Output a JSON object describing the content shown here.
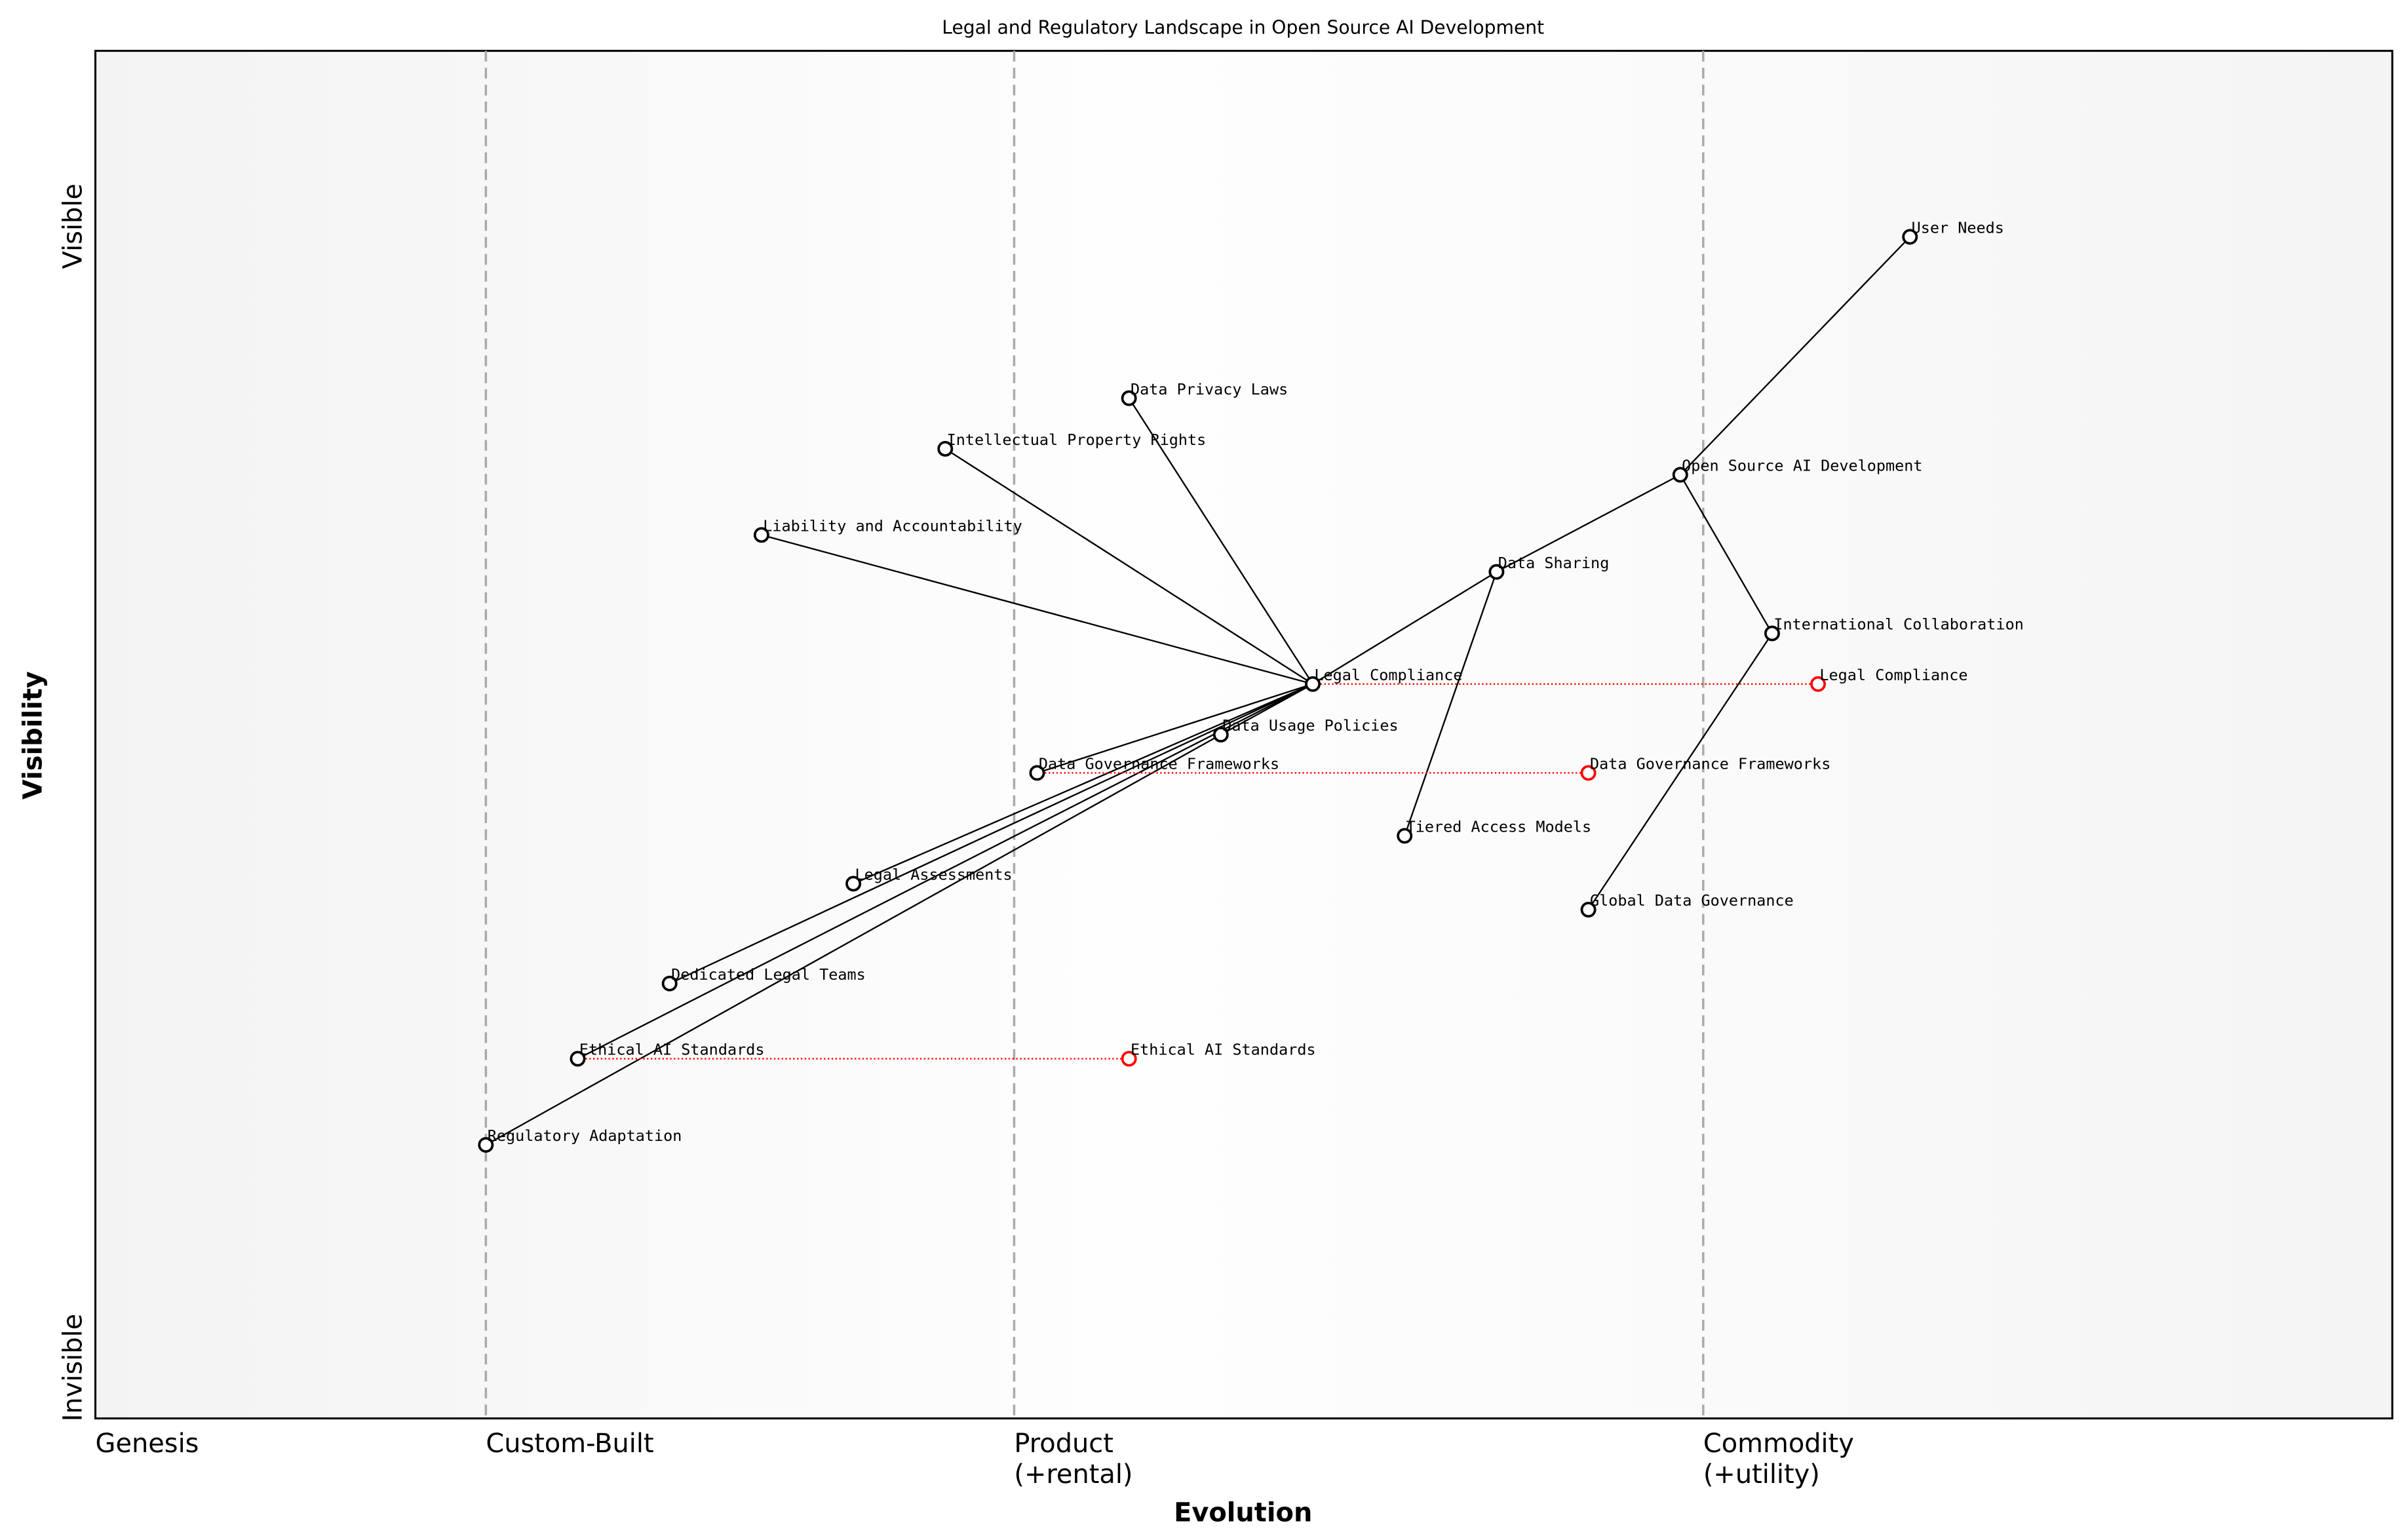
{
  "chart_data": {
    "type": "wardley-map",
    "title": "Legal and Regulatory Landscape in Open Source AI Development",
    "xlabel": "Evolution",
    "ylabel": "Visibility",
    "xlim": [
      0,
      1
    ],
    "ylim": [
      0,
      1
    ],
    "y_ticks": [
      "Invisible",
      "Visible"
    ],
    "stages": [
      {
        "label": "Genesis",
        "x": 0
      },
      {
        "label": "Custom-Built",
        "x": 0.17
      },
      {
        "label": "Product\n(+rental)",
        "x": 0.4
      },
      {
        "label": "Commodity\n(+utility)",
        "x": 0.7
      }
    ],
    "components": [
      {
        "name": "User Needs",
        "x": 0.79,
        "y": 0.864
      },
      {
        "name": "Open Source AI Development",
        "x": 0.69,
        "y": 0.69
      },
      {
        "name": "Data Privacy Laws",
        "x": 0.45,
        "y": 0.746
      },
      {
        "name": "Intellectual Property Rights",
        "x": 0.37,
        "y": 0.709
      },
      {
        "name": "Liability and Accountability",
        "x": 0.29,
        "y": 0.646
      },
      {
        "name": "Data Sharing",
        "x": 0.61,
        "y": 0.619
      },
      {
        "name": "International Collaboration",
        "x": 0.73,
        "y": 0.574
      },
      {
        "name": "Legal Compliance",
        "x": 0.53,
        "y": 0.537
      },
      {
        "name": "Data Usage Policies",
        "x": 0.49,
        "y": 0.5
      },
      {
        "name": "Data Governance Frameworks",
        "x": 0.41,
        "y": 0.472
      },
      {
        "name": "Tiered Access Models",
        "x": 0.57,
        "y": 0.426
      },
      {
        "name": "Legal Assessments",
        "x": 0.33,
        "y": 0.391
      },
      {
        "name": "Global Data Governance",
        "x": 0.65,
        "y": 0.372
      },
      {
        "name": "Dedicated Legal Teams",
        "x": 0.25,
        "y": 0.318
      },
      {
        "name": "Ethical AI Standards",
        "x": 0.21,
        "y": 0.263
      },
      {
        "name": "Regulatory Adaptation",
        "x": 0.17,
        "y": 0.2
      }
    ],
    "links": [
      [
        "User Needs",
        "Open Source AI Development"
      ],
      [
        "Open Source AI Development",
        "Data Sharing"
      ],
      [
        "Open Source AI Development",
        "International Collaboration"
      ],
      [
        "Data Sharing",
        "Legal Compliance"
      ],
      [
        "Data Sharing",
        "Tiered Access Models"
      ],
      [
        "International Collaboration",
        "Global Data Governance"
      ],
      [
        "Legal Compliance",
        "Data Privacy Laws"
      ],
      [
        "Legal Compliance",
        "Intellectual Property Rights"
      ],
      [
        "Legal Compliance",
        "Liability and Accountability"
      ],
      [
        "Legal Compliance",
        "Data Usage Policies"
      ],
      [
        "Legal Compliance",
        "Data Governance Frameworks"
      ],
      [
        "Legal Compliance",
        "Legal Assessments"
      ],
      [
        "Legal Compliance",
        "Dedicated Legal Teams"
      ],
      [
        "Legal Compliance",
        "Ethical AI Standards"
      ],
      [
        "Data Usage Policies",
        "Regulatory Adaptation"
      ]
    ],
    "evolutions": [
      {
        "name": "Legal Compliance",
        "from_x": 0.53,
        "to_x": 0.75,
        "y": 0.537
      },
      {
        "name": "Data Governance Frameworks",
        "from_x": 0.41,
        "to_x": 0.65,
        "y": 0.472
      },
      {
        "name": "Ethical AI Standards",
        "from_x": 0.21,
        "to_x": 0.45,
        "y": 0.263
      }
    ],
    "colors": {
      "component": "#000000",
      "evolution": "#ff0000",
      "stage_line": "#aaaaaa"
    }
  }
}
